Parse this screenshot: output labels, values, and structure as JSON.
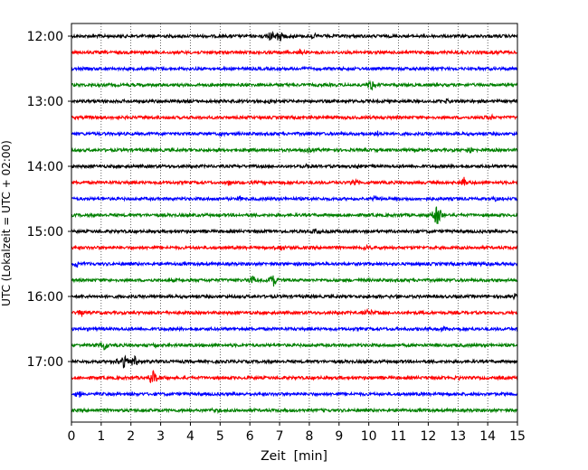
{
  "chart_data": {
    "type": "line",
    "xlabel": "Zeit  [min]",
    "ylabel": "UTC (Lokalzeit = UTC + 02:00)",
    "xlim": [
      0,
      15
    ],
    "x_ticks": [
      "0",
      "1",
      "2",
      "3",
      "4",
      "5",
      "6",
      "7",
      "8",
      "9",
      "10",
      "11",
      "12",
      "13",
      "14",
      "15"
    ],
    "y_ticks": [
      "12:00",
      "13:00",
      "14:00",
      "15:00",
      "16:00",
      "17:00"
    ],
    "grid_x": "dotted vertical lines at each minute",
    "trace_interval_min": 15,
    "trace_count": 24,
    "trace_colors": [
      "#000000",
      "#ff0000",
      "#0000ff",
      "#008000"
    ],
    "series": [
      {
        "start": "12:00",
        "color": "#000000",
        "events": [
          {
            "t": 7.0,
            "amp": 1.0
          },
          {
            "t": 6.7,
            "amp": 0.6
          },
          {
            "t": 8.2,
            "amp": 0.35
          }
        ]
      },
      {
        "start": "12:15",
        "color": "#ff0000",
        "events": [
          {
            "t": 7.7,
            "amp": 0.5
          },
          {
            "t": 14.3,
            "amp": 0.35
          }
        ]
      },
      {
        "start": "12:30",
        "color": "#0000ff",
        "events": [
          {
            "t": 8.0,
            "amp": 0.25
          }
        ]
      },
      {
        "start": "12:45",
        "color": "#008000",
        "events": [
          {
            "t": 10.1,
            "amp": 0.8
          }
        ]
      },
      {
        "start": "13:00",
        "color": "#000000",
        "events": [
          {
            "t": 6.6,
            "amp": 0.35
          },
          {
            "t": 12.6,
            "amp": 0.25
          }
        ]
      },
      {
        "start": "13:15",
        "color": "#ff0000",
        "events": [
          {
            "t": 14.1,
            "amp": 0.3
          }
        ]
      },
      {
        "start": "13:30",
        "color": "#0000ff",
        "events": [
          {
            "t": 5.0,
            "amp": 0.25
          },
          {
            "t": 10.3,
            "amp": 0.3
          }
        ]
      },
      {
        "start": "13:45",
        "color": "#008000",
        "events": [
          {
            "t": 8.0,
            "amp": 0.35
          },
          {
            "t": 13.4,
            "amp": 0.4
          }
        ]
      },
      {
        "start": "14:00",
        "color": "#000000",
        "events": [
          {
            "t": 7.9,
            "amp": 0.3
          },
          {
            "t": 9.6,
            "amp": 0.25
          }
        ]
      },
      {
        "start": "14:15",
        "color": "#ff0000",
        "events": [
          {
            "t": 5.3,
            "amp": 0.3
          },
          {
            "t": 9.5,
            "amp": 0.5
          },
          {
            "t": 13.2,
            "amp": 0.6
          }
        ]
      },
      {
        "start": "14:30",
        "color": "#0000ff",
        "events": [
          {
            "t": 5.7,
            "amp": 0.4
          },
          {
            "t": 10.2,
            "amp": 0.4
          },
          {
            "t": 14.2,
            "amp": 0.4
          }
        ]
      },
      {
        "start": "14:45",
        "color": "#008000",
        "events": [
          {
            "t": 12.3,
            "amp": 1.7
          }
        ]
      },
      {
        "start": "15:00",
        "color": "#000000",
        "events": [
          {
            "t": 8.2,
            "amp": 0.3
          },
          {
            "t": 11.1,
            "amp": 0.3
          }
        ]
      },
      {
        "start": "15:15",
        "color": "#ff0000",
        "events": [
          {
            "t": 7.1,
            "amp": 0.45
          },
          {
            "t": 9.9,
            "amp": 0.3
          }
        ]
      },
      {
        "start": "15:30",
        "color": "#0000ff",
        "events": [
          {
            "t": 0.2,
            "amp": 0.45
          },
          {
            "t": 13.9,
            "amp": 0.25
          }
        ]
      },
      {
        "start": "15:45",
        "color": "#008000",
        "events": [
          {
            "t": 6.1,
            "amp": 0.55
          },
          {
            "t": 6.8,
            "amp": 0.9
          }
        ]
      },
      {
        "start": "16:00",
        "color": "#000000",
        "events": [
          {
            "t": 10.8,
            "amp": 0.25
          },
          {
            "t": 14.9,
            "amp": 0.3
          }
        ]
      },
      {
        "start": "16:15",
        "color": "#ff0000",
        "events": [
          {
            "t": 0.35,
            "amp": 0.6
          },
          {
            "t": 10.0,
            "amp": 0.45
          }
        ]
      },
      {
        "start": "16:30",
        "color": "#0000ff",
        "events": [
          {
            "t": 12.5,
            "amp": 0.25
          }
        ]
      },
      {
        "start": "16:45",
        "color": "#008000",
        "events": [
          {
            "t": 1.1,
            "amp": 0.8
          },
          {
            "t": 2.8,
            "amp": 0.35
          }
        ]
      },
      {
        "start": "17:00",
        "color": "#000000",
        "events": [
          {
            "t": 1.75,
            "amp": 1.0
          },
          {
            "t": 2.1,
            "amp": 0.9
          },
          {
            "t": 2.6,
            "amp": 0.3
          }
        ]
      },
      {
        "start": "17:15",
        "color": "#ff0000",
        "events": [
          {
            "t": 2.75,
            "amp": 1.0
          },
          {
            "t": 13.0,
            "amp": 0.25
          }
        ]
      },
      {
        "start": "17:30",
        "color": "#0000ff",
        "events": [
          {
            "t": 0.25,
            "amp": 0.6
          }
        ]
      },
      {
        "start": "17:45",
        "color": "#008000",
        "events": [
          {
            "t": 4.8,
            "amp": 0.25
          }
        ]
      }
    ]
  }
}
